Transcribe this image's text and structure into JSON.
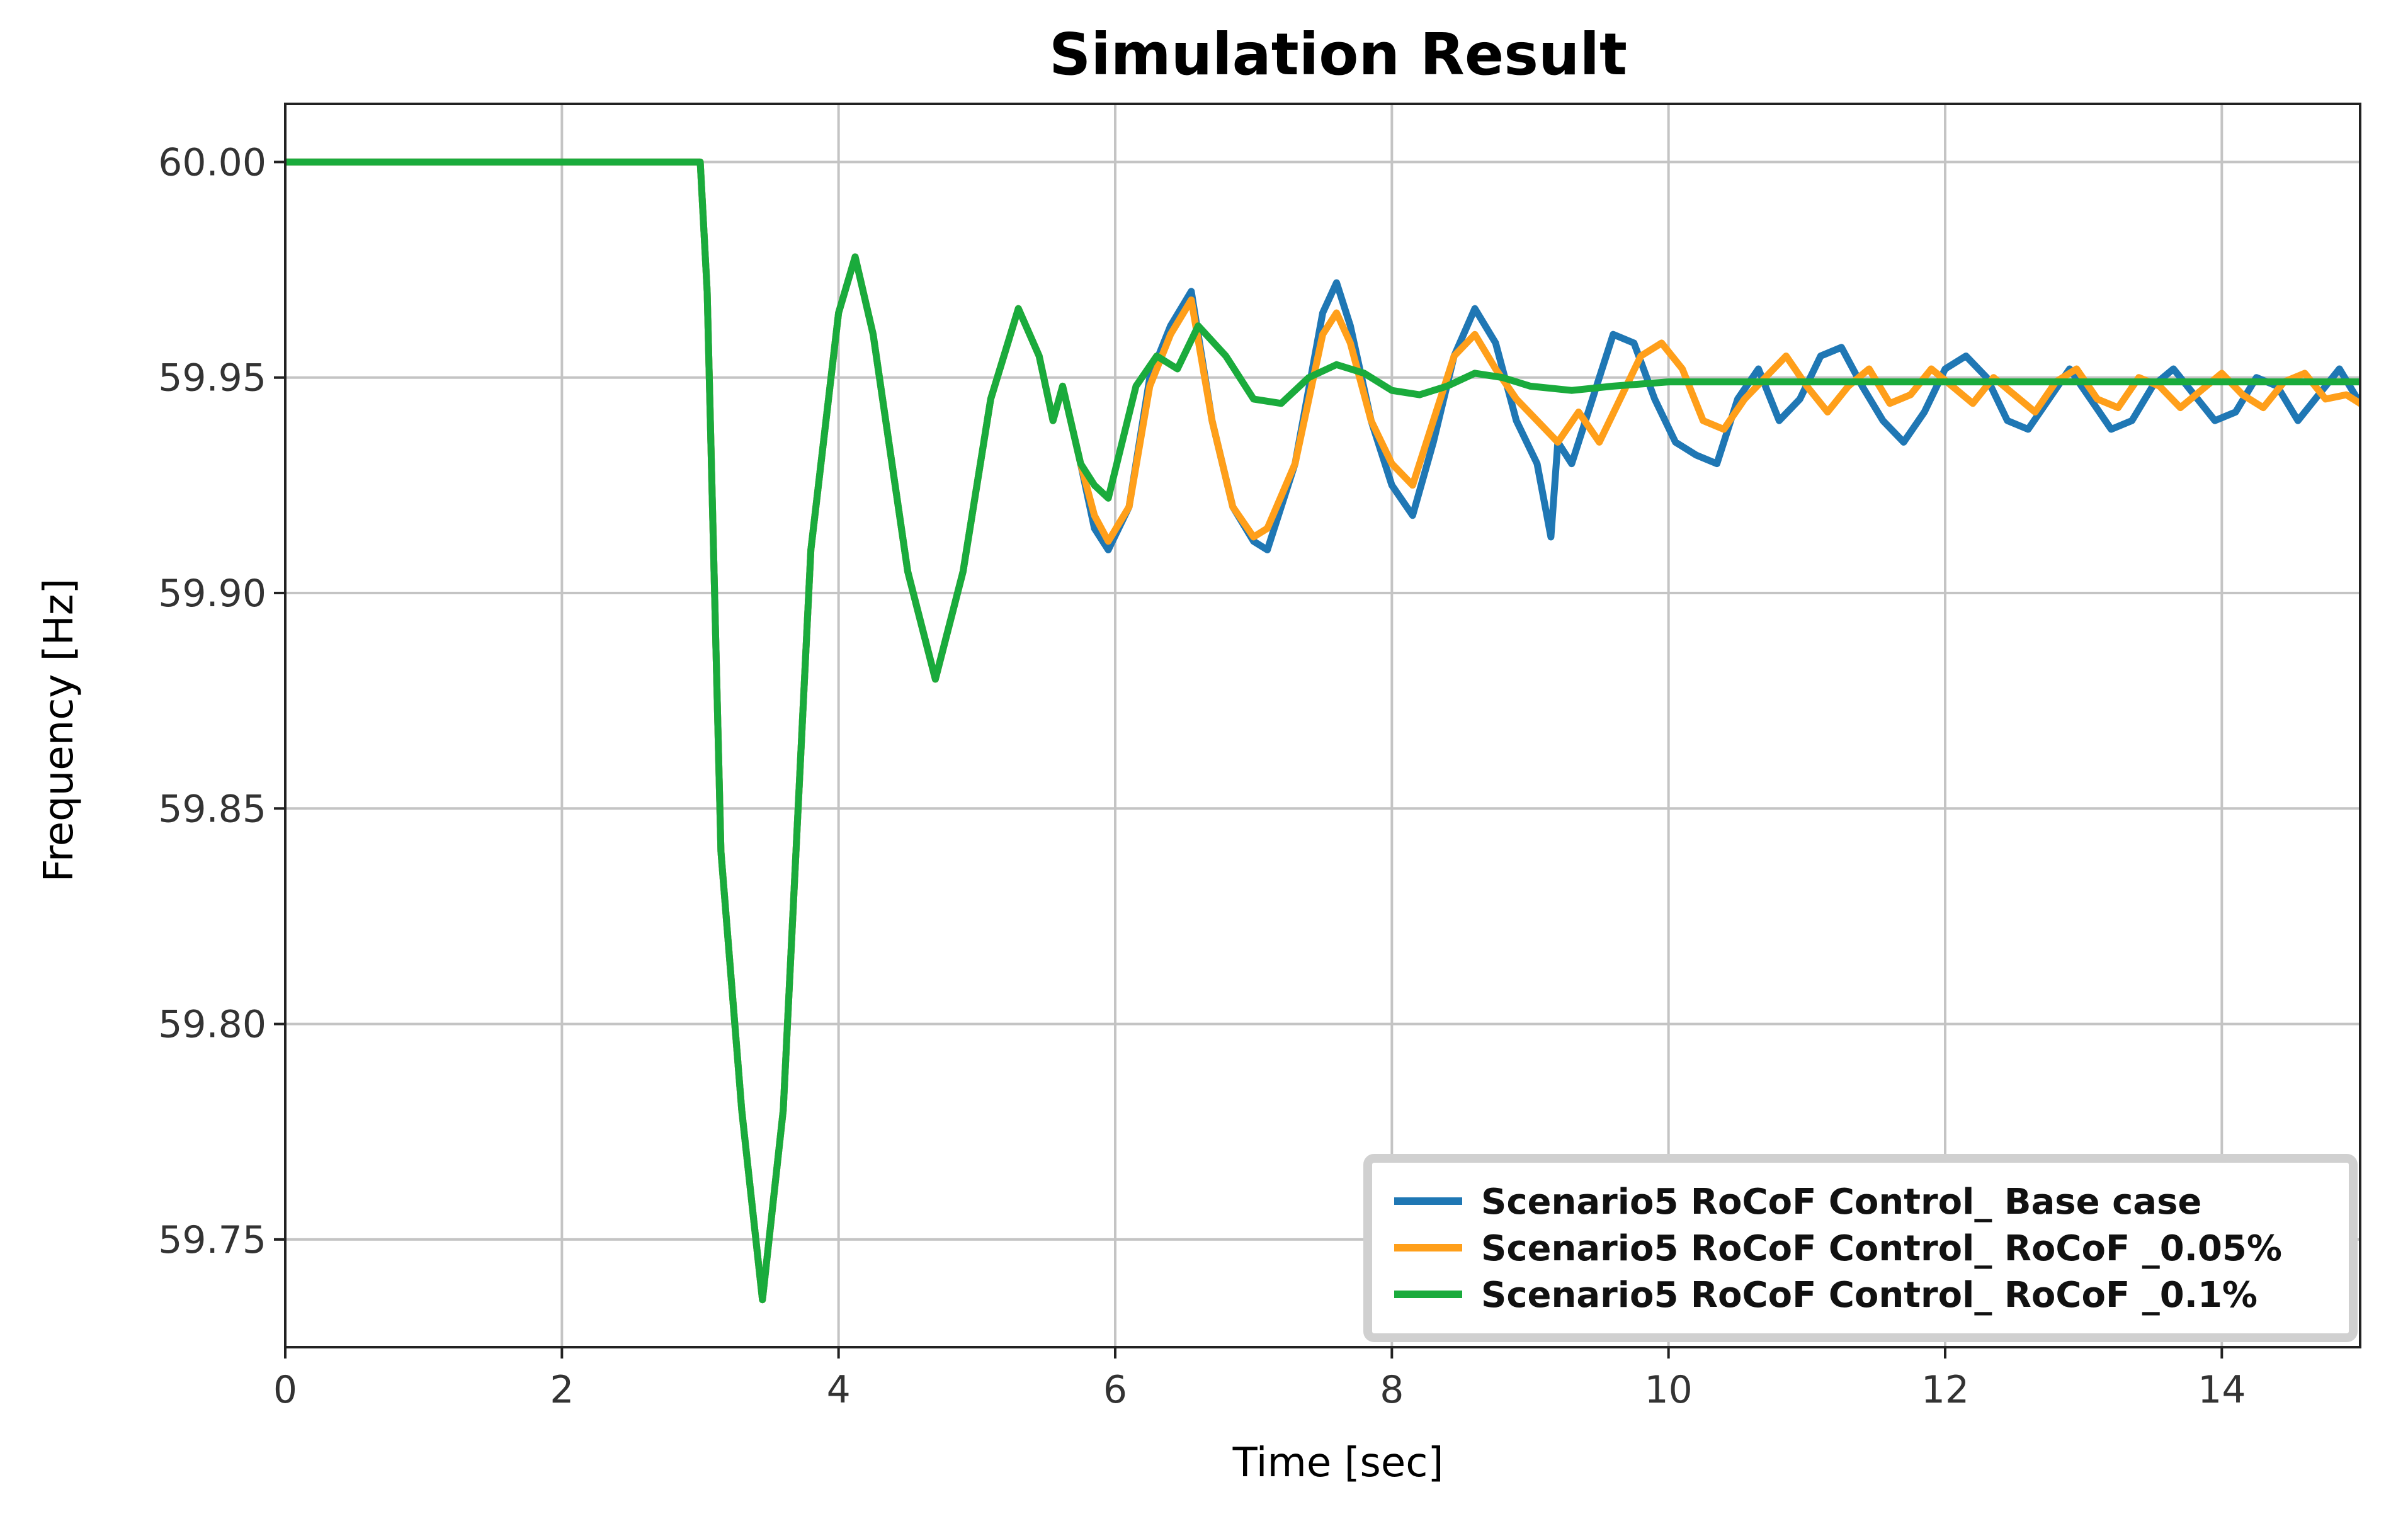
{
  "chart_data": {
    "type": "line",
    "title": "Simulation Result",
    "xlabel": "Time [sec]",
    "ylabel": "Frequency [Hz]",
    "xlim": [
      0,
      15
    ],
    "ylim": [
      59.725,
      60.0135
    ],
    "xticks": [
      0,
      2,
      4,
      6,
      8,
      10,
      12,
      14
    ],
    "yticks": [
      59.75,
      59.8,
      59.85,
      59.9,
      59.95,
      60.0
    ],
    "xtick_labels": [
      "0",
      "2",
      "4",
      "6",
      "8",
      "10",
      "12",
      "14"
    ],
    "ytick_labels": [
      "59.75",
      "59.80",
      "59.85",
      "59.90",
      "59.95",
      "60.00"
    ],
    "grid": true,
    "legend_position": "bottom-right",
    "series": [
      {
        "name": "Scenario5 RoCoF Control_ Base case",
        "color": "#1f77b4",
        "x": [
          0,
          3.0,
          3.05,
          3.15,
          3.3,
          3.45,
          3.6,
          3.8,
          4.0,
          4.12,
          4.25,
          4.5,
          4.7,
          4.9,
          5.1,
          5.3,
          5.45,
          5.55,
          5.62,
          5.75,
          5.85,
          5.95,
          6.1,
          6.25,
          6.4,
          6.55,
          6.7,
          6.85,
          7.0,
          7.1,
          7.3,
          7.5,
          7.6,
          7.7,
          7.85,
          8.0,
          8.15,
          8.3,
          8.45,
          8.6,
          8.75,
          8.9,
          9.05,
          9.15,
          9.2,
          9.3,
          9.45,
          9.6,
          9.75,
          9.9,
          10.05,
          10.2,
          10.35,
          10.5,
          10.65,
          10.8,
          10.95,
          11.1,
          11.25,
          11.4,
          11.55,
          11.7,
          11.85,
          12.0,
          12.15,
          12.3,
          12.45,
          12.6,
          12.75,
          12.9,
          13.05,
          13.2,
          13.35,
          13.5,
          13.65,
          13.8,
          13.95,
          14.1,
          14.25,
          14.4,
          14.55,
          14.7,
          14.85,
          15.0
        ],
        "values": [
          60.0,
          60.0,
          59.97,
          59.84,
          59.78,
          59.736,
          59.78,
          59.91,
          59.965,
          59.978,
          59.96,
          59.905,
          59.88,
          59.905,
          59.945,
          59.966,
          59.955,
          59.94,
          59.948,
          59.93,
          59.915,
          59.91,
          59.92,
          59.95,
          59.962,
          59.97,
          59.94,
          59.92,
          59.912,
          59.91,
          59.93,
          59.965,
          59.972,
          59.962,
          59.94,
          59.925,
          59.918,
          59.935,
          59.955,
          59.966,
          59.958,
          59.94,
          59.93,
          59.913,
          59.935,
          59.93,
          59.945,
          59.96,
          59.958,
          59.945,
          59.935,
          59.932,
          59.93,
          59.945,
          59.952,
          59.94,
          59.945,
          59.955,
          59.957,
          59.948,
          59.94,
          59.935,
          59.942,
          59.952,
          59.955,
          59.95,
          59.94,
          59.938,
          59.945,
          59.952,
          59.945,
          59.938,
          59.94,
          59.948,
          59.952,
          59.946,
          59.94,
          59.942,
          59.95,
          59.948,
          59.94,
          59.946,
          59.952,
          59.944
        ]
      },
      {
        "name": "Scenario5 RoCoF Control_ RoCoF _0.05%",
        "color": "#ff9f1a",
        "x": [
          0,
          3.0,
          3.05,
          3.15,
          3.3,
          3.45,
          3.6,
          3.8,
          4.0,
          4.12,
          4.25,
          4.5,
          4.7,
          4.9,
          5.1,
          5.3,
          5.45,
          5.55,
          5.62,
          5.75,
          5.85,
          5.95,
          6.1,
          6.25,
          6.4,
          6.55,
          6.7,
          6.85,
          7.0,
          7.1,
          7.3,
          7.5,
          7.6,
          7.7,
          7.85,
          8.0,
          8.15,
          8.3,
          8.45,
          8.6,
          8.75,
          8.9,
          9.05,
          9.2,
          9.35,
          9.5,
          9.65,
          9.8,
          9.95,
          10.1,
          10.25,
          10.4,
          10.55,
          10.7,
          10.85,
          11.0,
          11.15,
          11.3,
          11.45,
          11.6,
          11.75,
          11.9,
          12.05,
          12.2,
          12.35,
          12.5,
          12.65,
          12.8,
          12.95,
          13.1,
          13.25,
          13.4,
          13.55,
          13.7,
          13.85,
          14.0,
          14.15,
          14.3,
          14.45,
          14.6,
          14.75,
          14.9,
          15.0
        ],
        "values": [
          60.0,
          60.0,
          59.97,
          59.84,
          59.78,
          59.736,
          59.78,
          59.91,
          59.965,
          59.978,
          59.96,
          59.905,
          59.88,
          59.905,
          59.945,
          59.966,
          59.955,
          59.94,
          59.948,
          59.93,
          59.918,
          59.912,
          59.92,
          59.948,
          59.96,
          59.968,
          59.94,
          59.92,
          59.913,
          59.915,
          59.93,
          59.96,
          59.965,
          59.958,
          59.94,
          59.93,
          59.925,
          59.94,
          59.955,
          59.96,
          59.952,
          59.945,
          59.94,
          59.935,
          59.942,
          59.935,
          59.945,
          59.955,
          59.958,
          59.952,
          59.94,
          59.938,
          59.945,
          59.95,
          59.955,
          59.948,
          59.942,
          59.948,
          59.952,
          59.944,
          59.946,
          59.952,
          59.948,
          59.944,
          59.95,
          59.946,
          59.942,
          59.949,
          59.952,
          59.945,
          59.943,
          59.95,
          59.948,
          59.943,
          59.947,
          59.951,
          59.946,
          59.943,
          59.949,
          59.951,
          59.945,
          59.946,
          59.944
        ]
      },
      {
        "name": "Scenario5 RoCoF Control_ RoCoF _0.1%",
        "color": "#1aab3c",
        "x": [
          0,
          3.0,
          3.05,
          3.15,
          3.3,
          3.45,
          3.6,
          3.8,
          4.0,
          4.12,
          4.25,
          4.5,
          4.7,
          4.9,
          5.1,
          5.3,
          5.45,
          5.55,
          5.62,
          5.75,
          5.85,
          5.95,
          6.05,
          6.15,
          6.3,
          6.45,
          6.6,
          6.8,
          7.0,
          7.2,
          7.4,
          7.6,
          7.8,
          8.0,
          8.2,
          8.4,
          8.6,
          8.8,
          9.0,
          9.3,
          9.6,
          10.0,
          10.5,
          11.0,
          12.0,
          13.0,
          14.0,
          15.0
        ],
        "values": [
          60.0,
          60.0,
          59.97,
          59.84,
          59.78,
          59.736,
          59.78,
          59.91,
          59.965,
          59.978,
          59.96,
          59.905,
          59.88,
          59.905,
          59.945,
          59.966,
          59.955,
          59.94,
          59.948,
          59.93,
          59.925,
          59.922,
          59.935,
          59.948,
          59.955,
          59.952,
          59.962,
          59.955,
          59.945,
          59.944,
          59.95,
          59.953,
          59.951,
          59.947,
          59.946,
          59.948,
          59.951,
          59.95,
          59.948,
          59.947,
          59.948,
          59.949,
          59.949,
          59.949,
          59.949,
          59.949,
          59.949,
          59.949
        ]
      }
    ]
  }
}
